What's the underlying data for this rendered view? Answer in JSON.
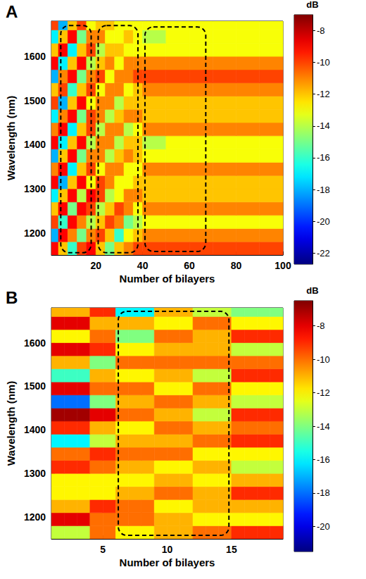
{
  "chart_data": [
    {
      "type": "heatmap",
      "panel": "A",
      "xlabel": "Number of bilayers",
      "ylabel": "Wavelength (nm)",
      "xlim": [
        1,
        100
      ],
      "xticks": [
        20,
        40,
        60,
        80,
        100
      ],
      "ylim": [
        1150,
        1680
      ],
      "yticks": [
        1200,
        1300,
        1400,
        1500,
        1600
      ],
      "x_edges": [
        1,
        4,
        8,
        12,
        16,
        20,
        24,
        28,
        32,
        36,
        40,
        50,
        60,
        70,
        80,
        90,
        100
      ],
      "y_edges": [
        1150,
        1180,
        1210,
        1240,
        1270,
        1300,
        1330,
        1360,
        1390,
        1420,
        1450,
        1480,
        1510,
        1540,
        1570,
        1600,
        1630,
        1660,
        1680
      ],
      "z": [
        [
          -9,
          -12,
          -16,
          -10,
          -9,
          -12,
          -15,
          -12,
          -11,
          -10,
          -10,
          -10,
          -10,
          -10,
          -10,
          -10
        ],
        [
          -18,
          -9,
          -11,
          -15,
          -11,
          -10,
          -12,
          -16,
          -13,
          -12,
          -11,
          -11,
          -11,
          -11,
          -11,
          -11
        ],
        [
          -10,
          -16,
          -9,
          -11,
          -14,
          -12,
          -10,
          -11,
          -15,
          -14,
          -13,
          -13,
          -13,
          -13,
          -13,
          -13
        ],
        [
          -12,
          -9,
          -15,
          -9,
          -10,
          -14,
          -12,
          -10,
          -11,
          -13,
          -11,
          -11,
          -11,
          -11,
          -11,
          -11
        ],
        [
          -17,
          -12,
          -9,
          -14,
          -9,
          -10,
          -14,
          -13,
          -11,
          -11,
          -12,
          -12,
          -12,
          -12,
          -12,
          -12
        ],
        [
          -9,
          -18,
          -12,
          -9,
          -13,
          -10,
          -11,
          -13,
          -13,
          -12,
          -12,
          -12,
          -12,
          -12,
          -12,
          -12
        ],
        [
          -11,
          -9,
          -17,
          -12,
          -10,
          -13,
          -11,
          -11,
          -13,
          -13,
          -11,
          -11,
          -11,
          -11,
          -11,
          -11
        ],
        [
          -18,
          -12,
          -9,
          -15,
          -11,
          -11,
          -14,
          -12,
          -11,
          -12,
          -13,
          -13,
          -13,
          -13,
          -13,
          -13
        ],
        [
          -9,
          -17,
          -12,
          -9,
          -14,
          -11,
          -11,
          -14,
          -12,
          -12,
          -14,
          -13,
          -13,
          -13,
          -13,
          -13
        ],
        [
          -11,
          -9,
          -17,
          -12,
          -10,
          -14,
          -11,
          -11,
          -14,
          -13,
          -11,
          -11,
          -11,
          -11,
          -11,
          -11
        ],
        [
          -17,
          -11,
          -9,
          -15,
          -10,
          -11,
          -14,
          -12,
          -11,
          -11,
          -12,
          -12,
          -12,
          -12,
          -12,
          -12
        ],
        [
          -10,
          -18,
          -12,
          -9,
          -13,
          -11,
          -11,
          -14,
          -12,
          -12,
          -12,
          -12,
          -12,
          -12,
          -12,
          -12
        ],
        [
          -12,
          -10,
          -16,
          -12,
          -10,
          -13,
          -11,
          -11,
          -13,
          -12,
          -11,
          -11,
          -11,
          -11,
          -11,
          -11
        ],
        [
          -18,
          -11,
          -9,
          -15,
          -11,
          -10,
          -13,
          -11,
          -11,
          -10,
          -10,
          -10,
          -10,
          -10,
          -10,
          -10
        ],
        [
          -9,
          -17,
          -12,
          -9,
          -14,
          -12,
          -11,
          -13,
          -11,
          -11,
          -11,
          -11,
          -11,
          -11,
          -11,
          -11
        ],
        [
          -12,
          -9,
          -17,
          -12,
          -10,
          -14,
          -12,
          -12,
          -13,
          -13,
          -13,
          -13,
          -13,
          -13,
          -13,
          -13
        ],
        [
          -17,
          -12,
          -9,
          -15,
          -11,
          -11,
          -13,
          -13,
          -12,
          -13,
          -14,
          -13,
          -13,
          -13,
          -13,
          -13
        ],
        [
          -10,
          -18,
          -12,
          -10,
          -13,
          -12,
          -12,
          -13,
          -13,
          -13,
          -13,
          -13,
          -13,
          -13,
          -13,
          -13
        ]
      ],
      "colorbar": {
        "label": "dB",
        "range": [
          -22.7,
          -7
        ],
        "ticks": [
          -22,
          -20,
          -18,
          -16,
          -14,
          -12,
          -10,
          -8
        ]
      },
      "regions": [
        {
          "x": [
            5,
            18
          ],
          "y": [
            1155,
            1670
          ]
        },
        {
          "x": [
            21,
            38
          ],
          "y": [
            1155,
            1670
          ]
        },
        {
          "x": [
            41,
            67
          ],
          "y": [
            1158,
            1667
          ]
        }
      ]
    },
    {
      "type": "heatmap",
      "panel": "B",
      "xlabel": "Number of bilayers",
      "ylabel": "Wavelength (nm)",
      "xlim": [
        1,
        19
      ],
      "xticks": [
        5,
        10,
        15
      ],
      "ylim": [
        1150,
        1680
      ],
      "yticks": [
        1200,
        1300,
        1400,
        1500,
        1600
      ],
      "x_edges": [
        1,
        2,
        3,
        4,
        5,
        6,
        7,
        8,
        9,
        10,
        11,
        12,
        13,
        14,
        15,
        16,
        17,
        18,
        19
      ],
      "y_edges": [
        1150,
        1180,
        1210,
        1240,
        1270,
        1300,
        1330,
        1360,
        1390,
        1420,
        1450,
        1480,
        1510,
        1540,
        1570,
        1600,
        1630,
        1660,
        1680
      ],
      "z": [
        [
          -13,
          -13,
          -13,
          -10,
          -10,
          -12,
          -12,
          -12,
          -11,
          -11,
          -11,
          -10,
          -10,
          -10,
          -9,
          -9,
          -9,
          -9
        ],
        [
          -8,
          -8,
          -8,
          -10,
          -10,
          -10,
          -10,
          -10,
          -11,
          -11,
          -11,
          -12,
          -12,
          -12,
          -12,
          -12,
          -12,
          -12
        ],
        [
          -11,
          -11,
          -11,
          -9,
          -9,
          -10,
          -10,
          -10,
          -12,
          -12,
          -12,
          -11,
          -11,
          -11,
          -11,
          -11,
          -11,
          -11
        ],
        [
          -12,
          -12,
          -12,
          -12,
          -12,
          -11,
          -11,
          -11,
          -10,
          -10,
          -10,
          -11,
          -11,
          -11,
          -9,
          -9,
          -9,
          -9
        ],
        [
          -12,
          -12,
          -12,
          -12,
          -12,
          -12,
          -12,
          -12,
          -11,
          -11,
          -11,
          -12,
          -12,
          -12,
          -11,
          -11,
          -11,
          -11
        ],
        [
          -9,
          -9,
          -9,
          -10,
          -10,
          -11,
          -11,
          -11,
          -12,
          -12,
          -12,
          -11,
          -11,
          -11,
          -13,
          -13,
          -13,
          -13
        ],
        [
          -10,
          -10,
          -10,
          -9,
          -9,
          -10,
          -10,
          -10,
          -10,
          -10,
          -10,
          -12,
          -12,
          -12,
          -12,
          -12,
          -12,
          -12
        ],
        [
          -16,
          -16,
          -16,
          -13,
          -13,
          -11,
          -11,
          -11,
          -11,
          -11,
          -11,
          -10,
          -10,
          -10,
          -9,
          -9,
          -9,
          -9
        ],
        [
          -9,
          -9,
          -9,
          -11,
          -11,
          -12,
          -12,
          -12,
          -10,
          -10,
          -10,
          -11,
          -11,
          -11,
          -10,
          -10,
          -10,
          -10
        ],
        [
          -7,
          -7,
          -7,
          -8,
          -8,
          -10,
          -10,
          -10,
          -11,
          -11,
          -11,
          -13,
          -13,
          -13,
          -9,
          -9,
          -9,
          -9
        ],
        [
          -18,
          -18,
          -18,
          -14,
          -14,
          -11,
          -11,
          -11,
          -10,
          -10,
          -10,
          -11,
          -11,
          -11,
          -13,
          -13,
          -13,
          -13
        ],
        [
          -8,
          -8,
          -8,
          -10,
          -10,
          -10,
          -10,
          -10,
          -12,
          -12,
          -12,
          -10,
          -10,
          -10,
          -12,
          -12,
          -12,
          -12
        ],
        [
          -15,
          -15,
          -15,
          -11,
          -11,
          -12,
          -12,
          -12,
          -11,
          -11,
          -11,
          -13,
          -13,
          -13,
          -9,
          -9,
          -9,
          -9
        ],
        [
          -11,
          -11,
          -11,
          -14,
          -14,
          -10,
          -10,
          -10,
          -10,
          -10,
          -10,
          -10,
          -10,
          -10,
          -10,
          -10,
          -10,
          -10
        ],
        [
          -8,
          -8,
          -8,
          -9,
          -9,
          -12,
          -12,
          -12,
          -11,
          -11,
          -11,
          -11,
          -11,
          -11,
          -13,
          -13,
          -13,
          -13
        ],
        [
          -12,
          -12,
          -12,
          -10,
          -10,
          -14,
          -14,
          -14,
          -10,
          -10,
          -10,
          -11,
          -11,
          -11,
          -9,
          -9,
          -9,
          -9
        ],
        [
          -8,
          -8,
          -8,
          -11,
          -11,
          -11,
          -11,
          -11,
          -12,
          -12,
          -12,
          -10,
          -10,
          -10,
          -12,
          -12,
          -12,
          -12
        ],
        [
          -11,
          -11,
          -11,
          -9,
          -9,
          -16,
          -16,
          -16,
          -11,
          -11,
          -11,
          -13,
          -13,
          -13,
          -14,
          -14,
          -14,
          -14
        ]
      ],
      "colorbar": {
        "label": "dB",
        "range": [
          -21.5,
          -6.5
        ],
        "ticks": [
          -20,
          -18,
          -16,
          -14,
          -12,
          -10,
          -8
        ]
      },
      "regions": [
        {
          "x": [
            6.2,
            14.8
          ],
          "y": [
            1158,
            1672
          ]
        }
      ]
    }
  ]
}
